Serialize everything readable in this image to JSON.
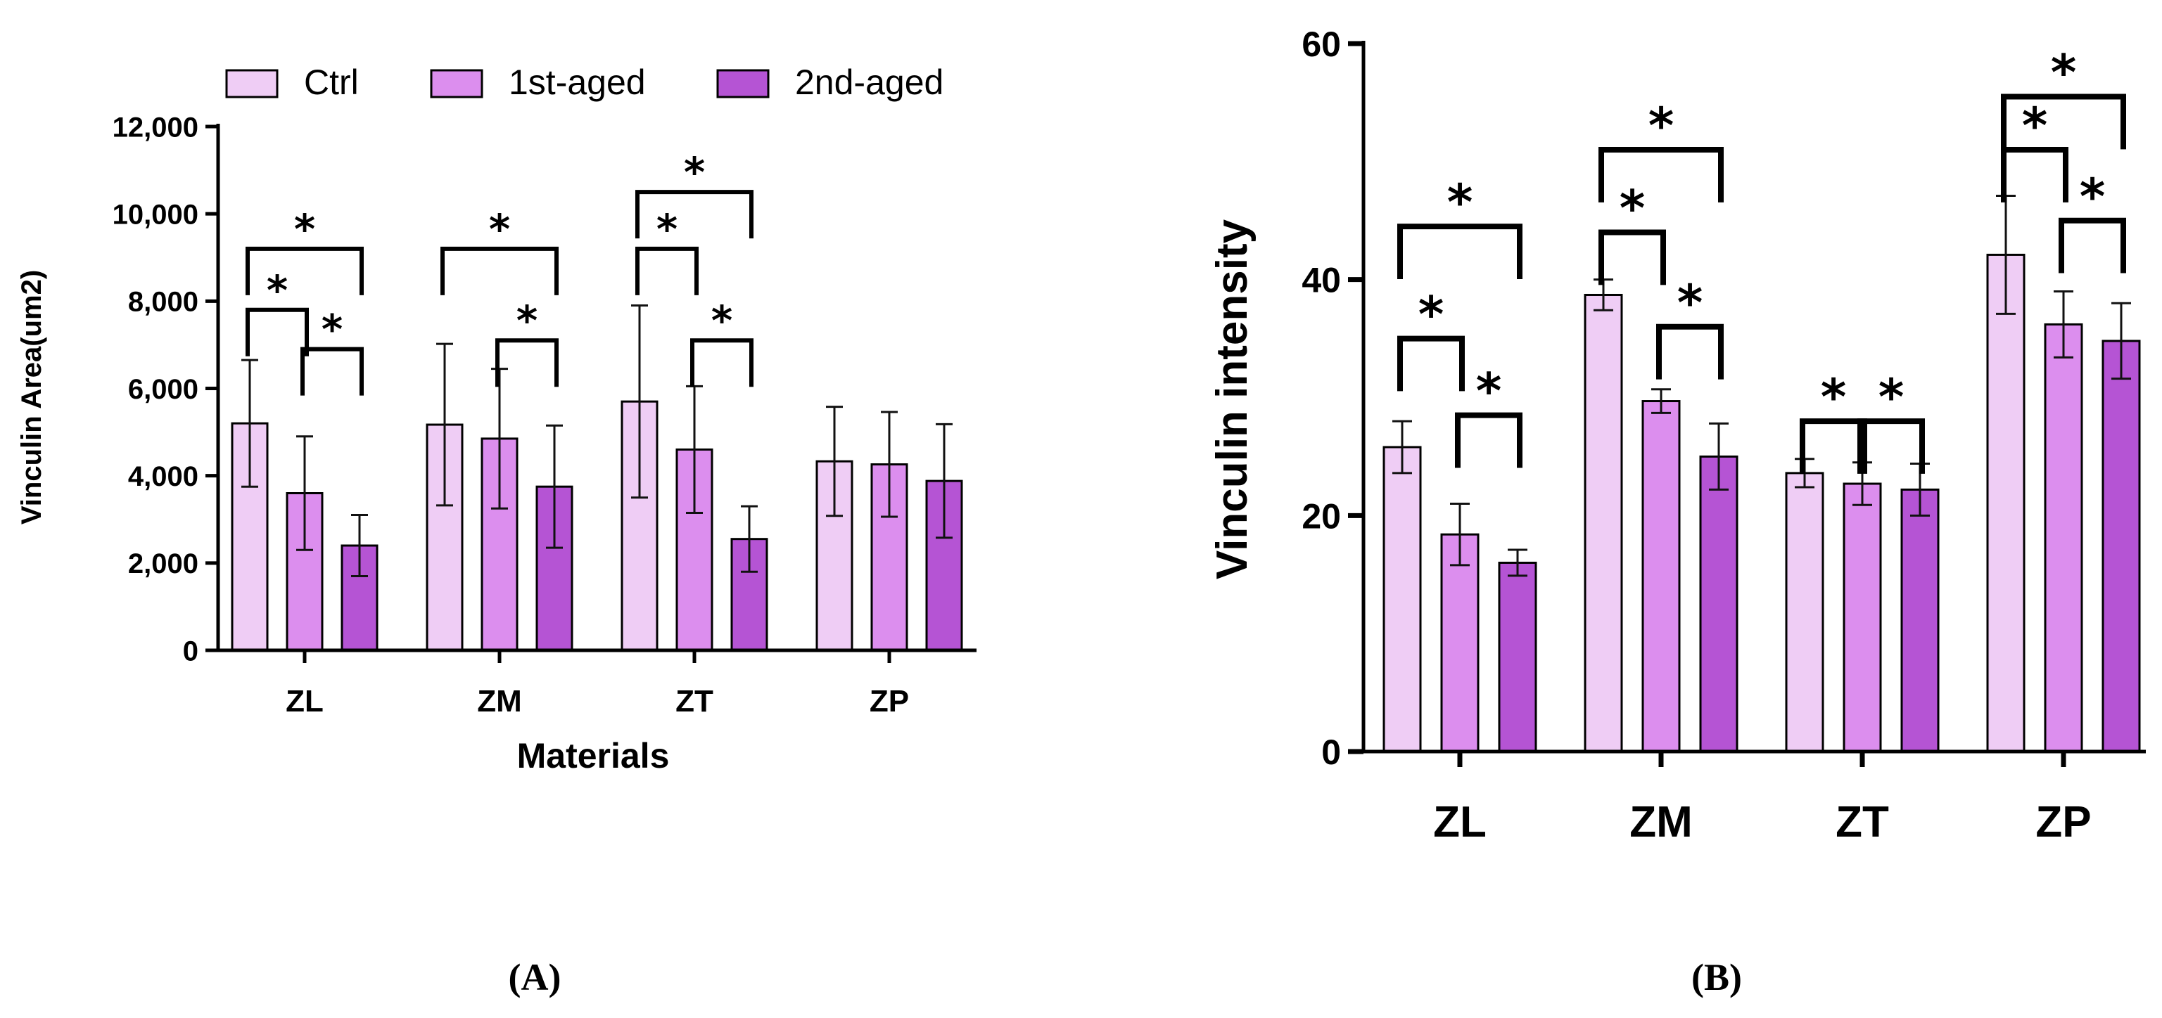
{
  "chart_data": [
    {
      "type": "bar",
      "panel_label": "(A)",
      "title": "",
      "xlabel": "Materials",
      "ylabel": "Vinculin Area(um2)",
      "categories": [
        "ZL",
        "ZM",
        "ZT",
        "ZP"
      ],
      "ylim": [
        0,
        12000
      ],
      "yticks": [
        0,
        2000,
        4000,
        6000,
        8000,
        10000,
        12000
      ],
      "ytick_labels": [
        "0",
        "2,000",
        "4,000",
        "6,000",
        "8,000",
        "10,000",
        "12,000"
      ],
      "legend": [
        "Ctrl",
        "1st-aged",
        "2nd-aged"
      ],
      "legend_position": "top",
      "series": [
        {
          "name": "Ctrl",
          "color": "#efcdf5",
          "values": [
            5200,
            5170,
            5700,
            4330
          ],
          "errors": [
            1450,
            1850,
            2200,
            1250
          ]
        },
        {
          "name": "1st-aged",
          "color": "#dc8eee",
          "values": [
            3600,
            4850,
            4600,
            4260
          ],
          "errors": [
            1300,
            1600,
            1450,
            1200
          ]
        },
        {
          "name": "2nd-aged",
          "color": "#b554d4",
          "values": [
            2400,
            3750,
            2550,
            3880
          ],
          "errors": [
            700,
            1400,
            750,
            1300
          ]
        }
      ],
      "significance": [
        {
          "category": "ZL",
          "from": "Ctrl",
          "to": "2nd-aged",
          "level": 9200,
          "label": "*"
        },
        {
          "category": "ZL",
          "from": "Ctrl",
          "to": "1st-aged",
          "level": 7800,
          "label": "*"
        },
        {
          "category": "ZL",
          "from": "1st-aged",
          "to": "2nd-aged",
          "level": 6900,
          "label": "*"
        },
        {
          "category": "ZM",
          "from": "Ctrl",
          "to": "2nd-aged",
          "level": 9200,
          "label": "*"
        },
        {
          "category": "ZM",
          "from": "1st-aged",
          "to": "2nd-aged",
          "level": 7100,
          "label": "*"
        },
        {
          "category": "ZT",
          "from": "Ctrl",
          "to": "2nd-aged",
          "level": 10500,
          "label": "*"
        },
        {
          "category": "ZT",
          "from": "Ctrl",
          "to": "1st-aged",
          "level": 9200,
          "label": "*"
        },
        {
          "category": "ZT",
          "from": "1st-aged",
          "to": "2nd-aged",
          "level": 7100,
          "label": "*"
        }
      ]
    },
    {
      "type": "bar",
      "panel_label": "(B)",
      "title": "",
      "xlabel": "",
      "ylabel": "Vinculin intensity",
      "categories": [
        "ZL",
        "ZM",
        "ZT",
        "ZP"
      ],
      "ylim": [
        0,
        60
      ],
      "yticks": [
        0,
        20,
        40,
        60
      ],
      "ytick_labels": [
        "0",
        "20",
        "40",
        "60"
      ],
      "series": [
        {
          "name": "Ctrl",
          "color": "#efcdf5",
          "values": [
            25.8,
            38.7,
            23.6,
            42.1
          ],
          "errors": [
            2.2,
            1.3,
            1.2,
            5.0
          ]
        },
        {
          "name": "1st-aged",
          "color": "#dc8eee",
          "values": [
            18.4,
            29.7,
            22.7,
            36.2
          ],
          "errors": [
            2.6,
            1.0,
            1.8,
            2.8
          ]
        },
        {
          "name": "2nd-aged",
          "color": "#b554d4",
          "values": [
            16.0,
            25.0,
            22.2,
            34.8
          ],
          "errors": [
            1.1,
            2.8,
            2.2,
            3.2
          ]
        }
      ],
      "significance": [
        {
          "category": "ZL",
          "from": "Ctrl",
          "to": "2nd-aged",
          "level": 44.5,
          "label": "*"
        },
        {
          "category": "ZL",
          "from": "Ctrl",
          "to": "1st-aged",
          "level": 35.0,
          "label": "*"
        },
        {
          "category": "ZL",
          "from": "1st-aged",
          "to": "2nd-aged",
          "level": 28.5,
          "label": "*"
        },
        {
          "category": "ZM",
          "from": "Ctrl",
          "to": "2nd-aged",
          "level": 51.0,
          "label": "*"
        },
        {
          "category": "ZM",
          "from": "Ctrl",
          "to": "1st-aged",
          "level": 44.0,
          "label": "*"
        },
        {
          "category": "ZM",
          "from": "1st-aged",
          "to": "2nd-aged",
          "level": 36.0,
          "label": "*"
        },
        {
          "category": "ZT",
          "from": "Ctrl",
          "to": "1st-aged",
          "level": 28.0,
          "label": "*"
        },
        {
          "category": "ZT",
          "from": "1st-aged",
          "to": "2nd-aged",
          "level": 28.0,
          "label": "*"
        },
        {
          "category": "ZP",
          "from": "Ctrl",
          "to": "2nd-aged",
          "level": 55.5,
          "label": "*"
        },
        {
          "category": "ZP",
          "from": "Ctrl",
          "to": "1st-aged",
          "level": 51.0,
          "label": "*"
        },
        {
          "category": "ZP",
          "from": "1st-aged",
          "to": "2nd-aged",
          "level": 45.0,
          "label": "*"
        }
      ]
    }
  ]
}
